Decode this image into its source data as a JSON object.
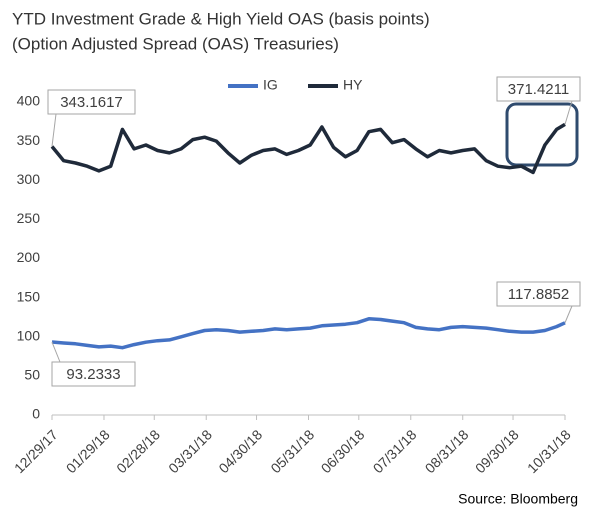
{
  "chart_data": {
    "type": "line",
    "title": "YTD Investment Grade & High Yield OAS (basis points)",
    "subtitle": "(Option Adjusted Spread (OAS) Treasuries)",
    "source": "Source: Bloomberg",
    "x": [
      "12/29/17",
      "01/05/18",
      "01/12/18",
      "01/19/18",
      "01/26/18",
      "02/02/18",
      "02/09/18",
      "02/16/18",
      "02/23/18",
      "03/02/18",
      "03/09/18",
      "03/16/18",
      "03/23/18",
      "03/30/18",
      "04/06/18",
      "04/13/18",
      "04/20/18",
      "04/27/18",
      "05/04/18",
      "05/11/18",
      "05/18/18",
      "05/25/18",
      "06/01/18",
      "06/08/18",
      "06/15/18",
      "06/22/18",
      "06/29/18",
      "07/06/18",
      "07/13/18",
      "07/20/18",
      "07/27/18",
      "08/03/18",
      "08/10/18",
      "08/17/18",
      "08/24/18",
      "08/31/18",
      "09/07/18",
      "09/14/18",
      "09/21/18",
      "09/28/18",
      "10/05/18",
      "10/12/18",
      "10/19/18",
      "10/26/18",
      "10/31/18"
    ],
    "series": [
      {
        "name": "IG",
        "color": "#4472c4",
        "values": [
          93.2333,
          92,
          91,
          89,
          87,
          88,
          86,
          90,
          93,
          95,
          96,
          100,
          104,
          108,
          109,
          108,
          106,
          107,
          108,
          110,
          109,
          110,
          111,
          114,
          115,
          116,
          118,
          123,
          122,
          120,
          118,
          112,
          110,
          109,
          112,
          113,
          112,
          111,
          109,
          107,
          106,
          106,
          108,
          113,
          117.8852
        ]
      },
      {
        "name": "HY",
        "color": "#1f2a3a",
        "values": [
          343.1617,
          325,
          322,
          318,
          312,
          318,
          365,
          340,
          345,
          338,
          335,
          340,
          352,
          355,
          350,
          335,
          322,
          332,
          338,
          340,
          333,
          338,
          345,
          368,
          342,
          330,
          338,
          362,
          365,
          348,
          352,
          340,
          330,
          338,
          335,
          338,
          340,
          325,
          318,
          316,
          318,
          310,
          345,
          365,
          371.4211
        ]
      }
    ],
    "xlim": [
      "12/29/17",
      "10/31/18"
    ],
    "xticks": [
      "12/29/17",
      "01/29/18",
      "02/28/18",
      "03/31/18",
      "04/30/18",
      "05/31/18",
      "06/30/18",
      "07/31/18",
      "08/31/18",
      "09/30/18",
      "10/31/18"
    ],
    "ylim": [
      0,
      400
    ],
    "yticks": [
      0,
      50,
      100,
      150,
      200,
      250,
      300,
      350,
      400
    ],
    "grid": false,
    "legend": "top"
  }
}
